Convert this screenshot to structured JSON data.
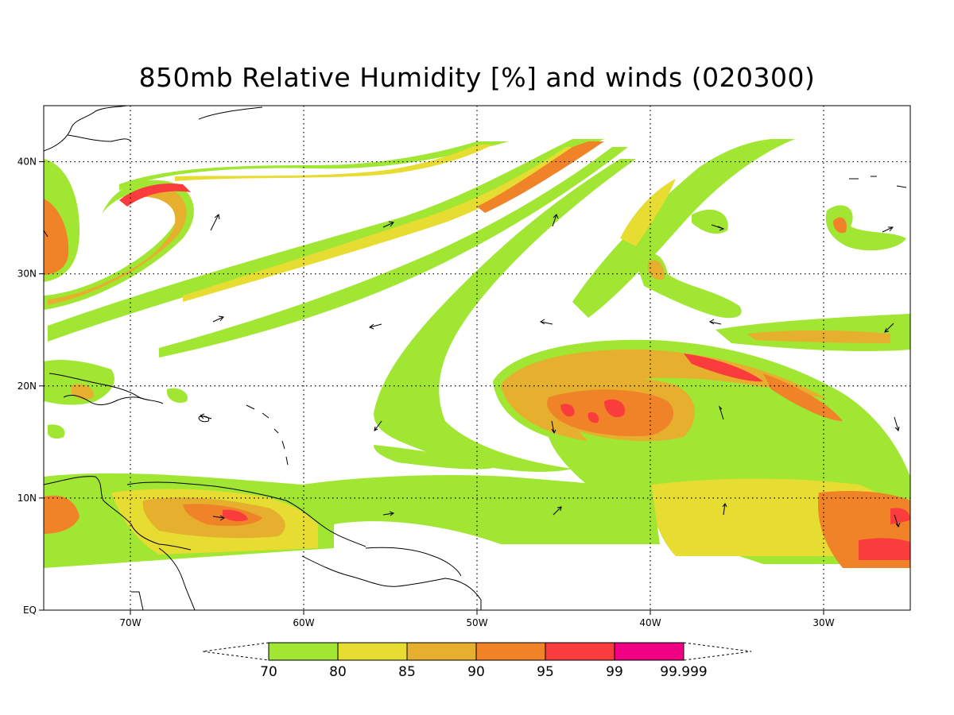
{
  "title": "850mb Relative Humidity [%] and winds (020300)",
  "map": {
    "lon_range": [
      -75,
      -25
    ],
    "lat_range": [
      0,
      45
    ],
    "x_ticks": [
      {
        "lon": -70,
        "label": "70W"
      },
      {
        "lon": -60,
        "label": "60W"
      },
      {
        "lon": -50,
        "label": "50W"
      },
      {
        "lon": -40,
        "label": "40W"
      },
      {
        "lon": -30,
        "label": "30W"
      }
    ],
    "y_ticks": [
      {
        "lat": 0,
        "label": "EQ"
      },
      {
        "lat": 10,
        "label": "10N"
      },
      {
        "lat": 20,
        "label": "20N"
      },
      {
        "lat": 30,
        "label": "30N"
      },
      {
        "lat": 40,
        "label": "40N"
      }
    ],
    "grid": true
  },
  "colorbar": {
    "colors": [
      "#a0e632",
      "#e6dc32",
      "#e6af2d",
      "#f08228",
      "#fa3c3c",
      "#f00082"
    ],
    "labels": [
      "70",
      "80",
      "85",
      "90",
      "95",
      "99",
      "99.999"
    ]
  }
}
